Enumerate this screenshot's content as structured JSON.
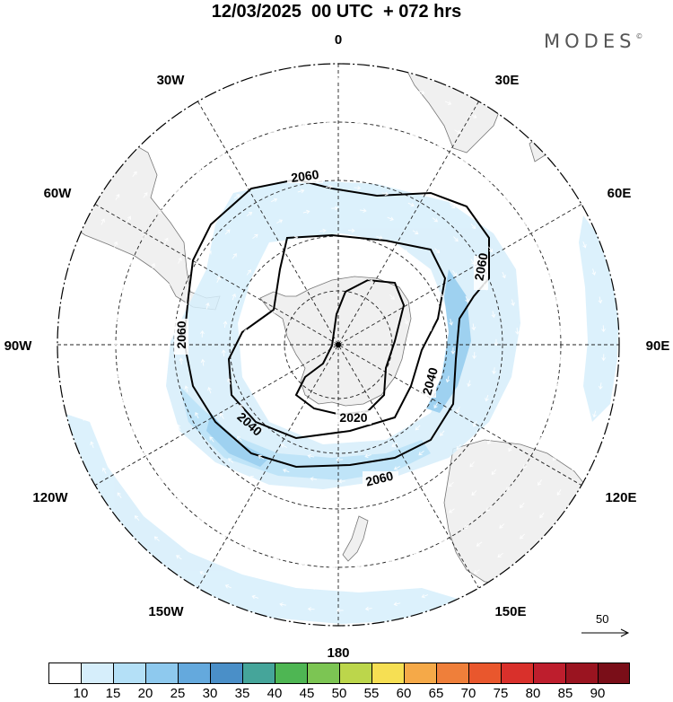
{
  "header": {
    "title": "12/03/2025  00 UTC  + 072 hrs"
  },
  "brand": {
    "name": "MODES",
    "mark": "©"
  },
  "map": {
    "projection": "south-polar-stereographic",
    "center": "South Pole",
    "longitude_labels": [
      "0",
      "30E",
      "60E",
      "90E",
      "120E",
      "150E",
      "180",
      "150W",
      "120W",
      "90W",
      "60W",
      "30W"
    ],
    "contour_labels": [
      "2060",
      "2060",
      "2060",
      "2060",
      "2040",
      "2040",
      "2020"
    ],
    "land_color": "#f0f0f0",
    "coast_color": "#777777",
    "grid_style": "dashed",
    "vector_reference": {
      "value": "50"
    }
  },
  "colorbar": {
    "ticks": [
      "10",
      "15",
      "20",
      "25",
      "30",
      "35",
      "40",
      "45",
      "50",
      "55",
      "60",
      "65",
      "70",
      "75",
      "80",
      "85",
      "90"
    ],
    "colors": [
      "#ffffff",
      "#d6eefb",
      "#b4e0f7",
      "#8ec9ee",
      "#64a9dd",
      "#4a8fc8",
      "#45a59a",
      "#4eb653",
      "#7cc553",
      "#bcd64b",
      "#f6df53",
      "#f5a948",
      "#ef7f3a",
      "#e9572d",
      "#d9302b",
      "#be1e2d",
      "#9a1420",
      "#7a0e18"
    ]
  }
}
